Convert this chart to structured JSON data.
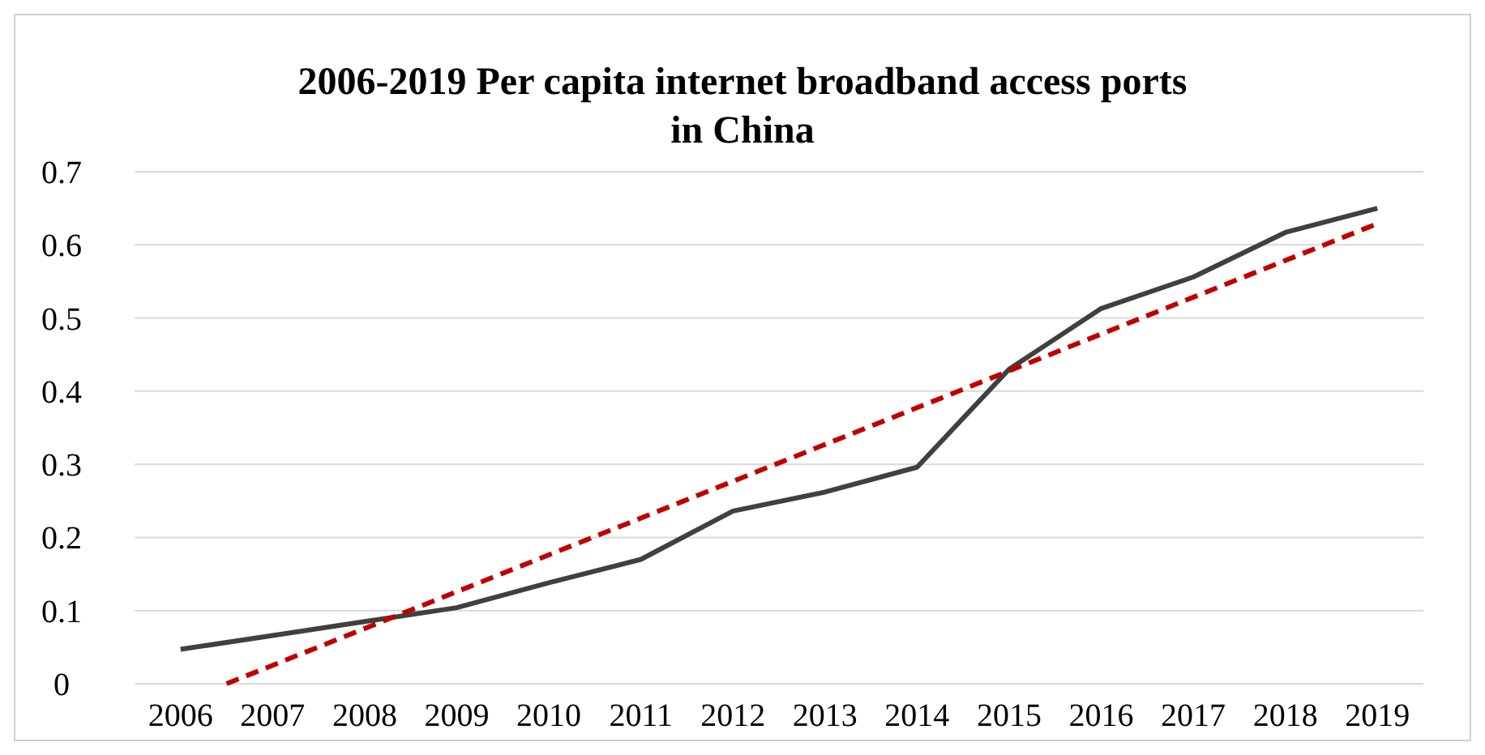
{
  "chart_data": {
    "type": "line",
    "title": "2006-2019 Per capita internet broadband access ports in China",
    "xlim": [
      2005.5,
      2019.5
    ],
    "xticks": [
      2006,
      2007,
      2008,
      2009,
      2010,
      2011,
      2012,
      2013,
      2014,
      2015,
      2016,
      2017,
      2018,
      2019
    ],
    "ylim": [
      0,
      0.7
    ],
    "yticks": [
      0,
      0.1,
      0.2,
      0.3,
      0.4,
      0.5,
      0.6,
      0.7
    ],
    "grid": "y",
    "series": [
      {
        "color": "#404040",
        "line_style": "solid",
        "x": [
          2006,
          2007,
          2008,
          2009,
          2010,
          2011,
          2012,
          2013,
          2014,
          2015,
          2016,
          2017,
          2018,
          2019
        ],
        "values": [
          0.047,
          0.066,
          0.085,
          0.104,
          0.138,
          0.17,
          0.236,
          0.262,
          0.296,
          0.43,
          0.513,
          0.556,
          0.617,
          0.65
        ]
      },
      {
        "color": "#c00000",
        "line_style": "dashed",
        "x": [
          2006.5,
          2019
        ],
        "values": [
          0,
          0.629
        ]
      }
    ]
  }
}
